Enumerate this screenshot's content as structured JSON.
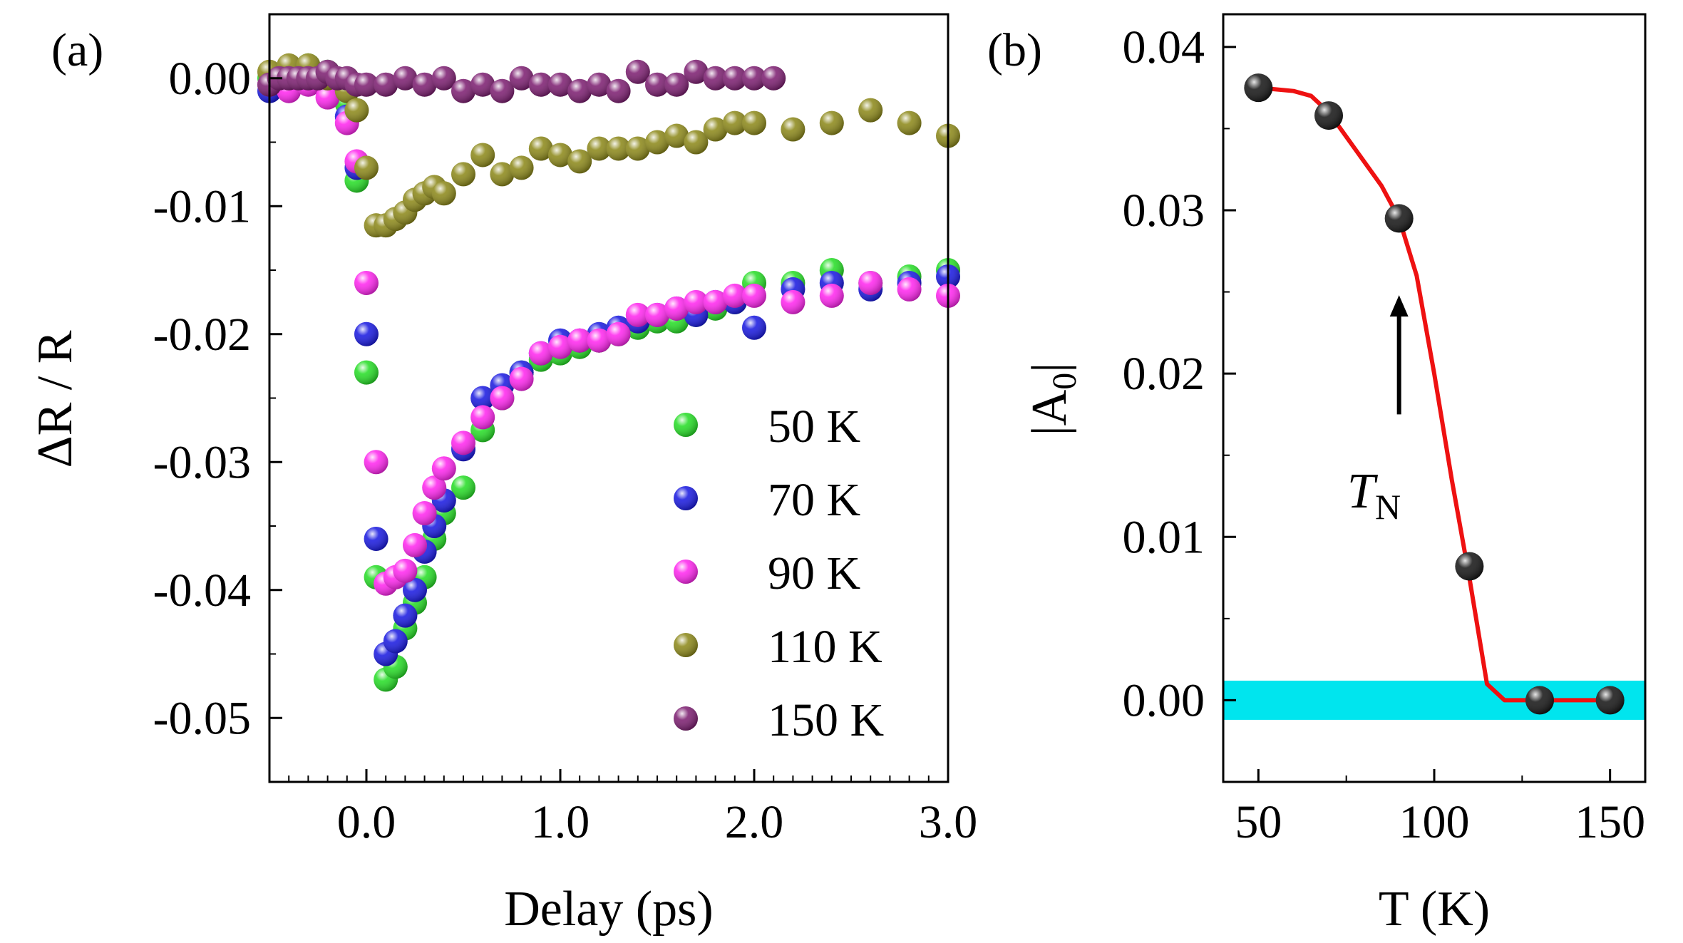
{
  "chart_data": [
    {
      "panel": "(a)",
      "type": "scatter",
      "xlabel": "Delay (ps)",
      "ylabel": "ΔR / R",
      "xlim": [
        -0.5,
        3.0
      ],
      "ylim": [
        -0.055,
        0.005
      ],
      "xticks": [
        0.0,
        1.0,
        2.0,
        3.0
      ],
      "xtick_labels": [
        "0.0",
        "1.0",
        "2.0",
        "3.0"
      ],
      "yticks": [
        0.0,
        -0.01,
        -0.02,
        -0.03,
        -0.04,
        -0.05
      ],
      "ytick_labels": [
        "0.00",
        "-0.01",
        "-0.02",
        "-0.03",
        "-0.04",
        "-0.05"
      ],
      "legend_position": "bottom-right",
      "series": [
        {
          "name": "50 K",
          "color": "#22dd22",
          "x": [
            -0.5,
            -0.4,
            -0.3,
            -0.2,
            -0.1,
            -0.05,
            0.0,
            0.05,
            0.1,
            0.15,
            0.2,
            0.25,
            0.3,
            0.35,
            0.4,
            0.5,
            0.6,
            0.7,
            0.8,
            0.9,
            1.0,
            1.1,
            1.2,
            1.3,
            1.4,
            1.5,
            1.6,
            1.7,
            1.8,
            1.9,
            2.0,
            2.2,
            2.4,
            2.6,
            2.8,
            3.0
          ],
          "y": [
            0.0,
            0.0005,
            0.001,
            0.0005,
            -0.002,
            -0.008,
            -0.023,
            -0.039,
            -0.047,
            -0.046,
            -0.043,
            -0.041,
            -0.039,
            -0.036,
            -0.034,
            -0.032,
            -0.0275,
            -0.025,
            -0.023,
            -0.022,
            -0.0215,
            -0.021,
            -0.0205,
            -0.02,
            -0.0195,
            -0.019,
            -0.019,
            -0.0185,
            -0.018,
            -0.0175,
            -0.016,
            -0.016,
            -0.015,
            -0.016,
            -0.0155,
            -0.015
          ]
        },
        {
          "name": "70 K",
          "color": "#1515e0",
          "x": [
            -0.5,
            -0.4,
            -0.3,
            -0.2,
            -0.1,
            -0.05,
            0.0,
            0.05,
            0.1,
            0.15,
            0.2,
            0.25,
            0.3,
            0.35,
            0.4,
            0.5,
            0.6,
            0.7,
            0.8,
            0.9,
            1.0,
            1.1,
            1.2,
            1.3,
            1.4,
            1.5,
            1.6,
            1.7,
            1.8,
            1.9,
            2.0,
            2.2,
            2.4,
            2.6,
            2.8,
            3.0
          ],
          "y": [
            -0.001,
            -0.0005,
            0.0,
            -0.001,
            -0.003,
            -0.007,
            -0.02,
            -0.036,
            -0.045,
            -0.044,
            -0.042,
            -0.04,
            -0.037,
            -0.035,
            -0.033,
            -0.029,
            -0.025,
            -0.024,
            -0.023,
            -0.0215,
            -0.0205,
            -0.0205,
            -0.02,
            -0.0195,
            -0.019,
            -0.0185,
            -0.018,
            -0.0185,
            -0.0175,
            -0.0175,
            -0.0195,
            -0.0165,
            -0.016,
            -0.0165,
            -0.016,
            -0.0155
          ]
        },
        {
          "name": "90 K",
          "color": "#ff22ee",
          "x": [
            -0.5,
            -0.4,
            -0.3,
            -0.2,
            -0.1,
            -0.05,
            0.0,
            0.05,
            0.1,
            0.15,
            0.2,
            0.25,
            0.3,
            0.35,
            0.4,
            0.5,
            0.6,
            0.7,
            0.8,
            0.9,
            1.0,
            1.1,
            1.2,
            1.3,
            1.4,
            1.5,
            1.6,
            1.7,
            1.8,
            1.9,
            2.0,
            2.2,
            2.4,
            2.6,
            2.8,
            3.0
          ],
          "y": [
            -0.0005,
            -0.001,
            -0.0005,
            -0.0015,
            -0.0035,
            -0.0065,
            -0.016,
            -0.03,
            -0.0395,
            -0.039,
            -0.0385,
            -0.0365,
            -0.034,
            -0.032,
            -0.0305,
            -0.0285,
            -0.0265,
            -0.025,
            -0.0235,
            -0.0215,
            -0.021,
            -0.0205,
            -0.0205,
            -0.02,
            -0.0185,
            -0.0185,
            -0.018,
            -0.0175,
            -0.0175,
            -0.017,
            -0.017,
            -0.0175,
            -0.017,
            -0.016,
            -0.0165,
            -0.017
          ]
        },
        {
          "name": "110 K",
          "color": "#8a8615",
          "x": [
            -0.5,
            -0.4,
            -0.3,
            -0.2,
            -0.1,
            -0.05,
            0.0,
            0.05,
            0.1,
            0.15,
            0.2,
            0.25,
            0.3,
            0.35,
            0.4,
            0.5,
            0.6,
            0.7,
            0.8,
            0.9,
            1.0,
            1.1,
            1.2,
            1.3,
            1.4,
            1.5,
            1.6,
            1.7,
            1.8,
            1.9,
            2.0,
            2.2,
            2.4,
            2.6,
            2.8,
            3.0
          ],
          "y": [
            0.0005,
            0.001,
            0.001,
            0.0,
            -0.001,
            -0.0025,
            -0.007,
            -0.0115,
            -0.0115,
            -0.011,
            -0.0105,
            -0.0095,
            -0.009,
            -0.0085,
            -0.009,
            -0.0075,
            -0.006,
            -0.0075,
            -0.007,
            -0.0055,
            -0.006,
            -0.0065,
            -0.0055,
            -0.0055,
            -0.0055,
            -0.005,
            -0.0045,
            -0.005,
            -0.004,
            -0.0035,
            -0.0035,
            -0.004,
            -0.0035,
            -0.0025,
            -0.0035,
            -0.0045
          ]
        },
        {
          "name": "150 K",
          "color": "#7a1a6e",
          "x": [
            -0.5,
            -0.45,
            -0.4,
            -0.35,
            -0.3,
            -0.25,
            -0.2,
            -0.15,
            -0.1,
            -0.05,
            0.0,
            0.1,
            0.2,
            0.3,
            0.4,
            0.5,
            0.6,
            0.7,
            0.8,
            0.9,
            1.0,
            1.1,
            1.2,
            1.3,
            1.4,
            1.5,
            1.6,
            1.7,
            1.8,
            1.9,
            2.0,
            2.1
          ],
          "y": [
            -0.0005,
            0.0,
            0.0,
            0.0,
            0.0,
            0.0,
            0.0005,
            0.0,
            0.0,
            -0.0005,
            -0.0005,
            -0.0005,
            0.0,
            -0.0005,
            0.0,
            -0.001,
            -0.0005,
            -0.001,
            0.0,
            -0.0005,
            -0.0005,
            -0.001,
            -0.0005,
            -0.001,
            0.0005,
            -0.0005,
            -0.0005,
            0.0005,
            0.0,
            0.0,
            0.0,
            0.0
          ]
        }
      ]
    },
    {
      "panel": "(b)",
      "type": "scatter",
      "xlabel": "T (K)",
      "ylabel_main": "|A",
      "ylabel_sub": "0",
      "ylabel_end": "|",
      "xlim": [
        40,
        160
      ],
      "ylim": [
        -0.005,
        0.042
      ],
      "xticks": [
        50,
        100,
        150
      ],
      "xtick_labels": [
        "50",
        "100",
        "150"
      ],
      "yticks": [
        0.0,
        0.01,
        0.02,
        0.03,
        0.04
      ],
      "ytick_labels": [
        "0.00",
        "0.01",
        "0.02",
        "0.03",
        "0.04"
      ],
      "points": {
        "x": [
          50,
          70,
          90,
          110,
          130,
          150
        ],
        "y": [
          0.0375,
          0.0358,
          0.0295,
          0.0082,
          0.0,
          0.0
        ],
        "color": "#111111"
      },
      "fit_line": {
        "color": "#ee1111",
        "x": [
          50,
          55,
          60,
          65,
          70,
          75,
          80,
          85,
          90,
          95,
          100,
          105,
          110,
          115,
          120,
          130,
          140,
          150
        ],
        "y": [
          0.0375,
          0.0374,
          0.0373,
          0.037,
          0.036,
          0.0345,
          0.033,
          0.0315,
          0.0295,
          0.026,
          0.02,
          0.0135,
          0.0075,
          0.001,
          0.0,
          0.0,
          0.0,
          0.0
        ]
      },
      "band": {
        "color": "#00e5ee",
        "y_range": [
          -0.0012,
          0.0012
        ]
      },
      "annotation": {
        "text_main": "T",
        "text_sub": "N",
        "arrow_x": 90,
        "arrow_from_y": 0.0175,
        "arrow_to_y": 0.0248
      }
    }
  ]
}
